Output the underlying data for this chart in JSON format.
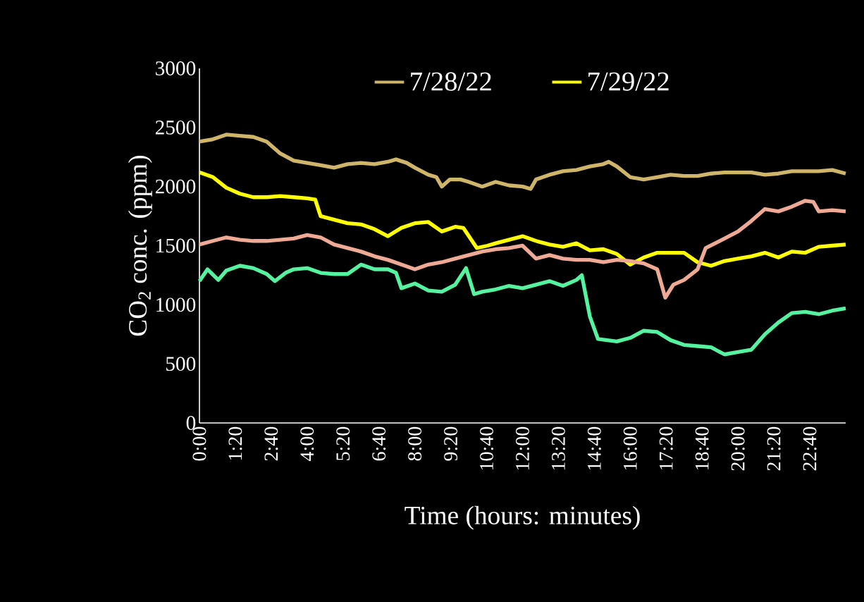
{
  "chart_data": {
    "type": "line",
    "xlabel": "Time (hours: minutes)",
    "ylabel": "CO$_{2}$ conc. (ppm)",
    "xlim": [
      0,
      24
    ],
    "ylim": [
      0,
      3000
    ],
    "xticks": [
      {
        "value": 0,
        "label": "0:00"
      },
      {
        "value": 1.3333,
        "label": "1:20"
      },
      {
        "value": 2.6667,
        "label": "2:40"
      },
      {
        "value": 4,
        "label": "4:00"
      },
      {
        "value": 5.3333,
        "label": "5:20"
      },
      {
        "value": 6.6667,
        "label": "6:40"
      },
      {
        "value": 8,
        "label": "8:00"
      },
      {
        "value": 9.3333,
        "label": "9:20"
      },
      {
        "value": 10.6667,
        "label": "10:40"
      },
      {
        "value": 12,
        "label": "12:00"
      },
      {
        "value": 13.3333,
        "label": "13:20"
      },
      {
        "value": 14.6667,
        "label": "14:40"
      },
      {
        "value": 16,
        "label": "16:00"
      },
      {
        "value": 17.3333,
        "label": "17:20"
      },
      {
        "value": 18.6667,
        "label": "18:40"
      },
      {
        "value": 20,
        "label": "20:00"
      },
      {
        "value": 21.3333,
        "label": "21:20"
      },
      {
        "value": 22.6667,
        "label": "22:40"
      }
    ],
    "yticks": [
      0,
      500,
      1000,
      1500,
      2000,
      2500,
      3000
    ],
    "grid": false,
    "legend": "top",
    "marker": "none",
    "line_style": "solid",
    "series": [
      {
        "name": "7/28/22",
        "color": "#cfb56a",
        "x": [
          0,
          0.5,
          1,
          1.5,
          2,
          2.5,
          3,
          3.5,
          4,
          4.5,
          5,
          5.5,
          6,
          6.5,
          7,
          7.3,
          7.7,
          8,
          8.5,
          8.8,
          9,
          9.3,
          9.7,
          10,
          10.5,
          11,
          11.5,
          12,
          12.3,
          12.5,
          13,
          13.5,
          14,
          14.5,
          15,
          15.2,
          15.5,
          16,
          16.5,
          17,
          17.5,
          18,
          18.5,
          19,
          19.5,
          20,
          20.5,
          21,
          21.5,
          22,
          22.5,
          23,
          23.5,
          24
        ],
        "values": [
          2380,
          2400,
          2440,
          2430,
          2420,
          2380,
          2280,
          2220,
          2200,
          2180,
          2160,
          2190,
          2200,
          2190,
          2210,
          2230,
          2200,
          2160,
          2100,
          2080,
          2000,
          2060,
          2060,
          2040,
          2000,
          2040,
          2010,
          2000,
          1980,
          2060,
          2100,
          2130,
          2140,
          2170,
          2190,
          2210,
          2170,
          2080,
          2060,
          2080,
          2100,
          2090,
          2090,
          2110,
          2120,
          2120,
          2120,
          2100,
          2110,
          2130,
          2130,
          2130,
          2140,
          2110
        ]
      },
      {
        "name": "7/29/22",
        "color": "#ffff00",
        "x": [
          0,
          0.5,
          1,
          1.5,
          2,
          2.5,
          3,
          3.5,
          4,
          4.3,
          4.5,
          5,
          5.5,
          6,
          6.5,
          7,
          7.5,
          8,
          8.5,
          9,
          9.5,
          9.8,
          10.3,
          10.7,
          11,
          11.5,
          12,
          12.5,
          13,
          13.5,
          14,
          14.5,
          15,
          15.5,
          16,
          16.5,
          17,
          17.5,
          18,
          18.5,
          19,
          19.5,
          20,
          20.5,
          21,
          21.5,
          22,
          22.5,
          23,
          23.5,
          24
        ],
        "values": [
          2120,
          2080,
          1990,
          1940,
          1910,
          1910,
          1920,
          1910,
          1900,
          1890,
          1750,
          1720,
          1690,
          1680,
          1640,
          1580,
          1650,
          1690,
          1700,
          1620,
          1660,
          1650,
          1480,
          1500,
          1520,
          1550,
          1580,
          1540,
          1510,
          1490,
          1520,
          1460,
          1470,
          1430,
          1340,
          1400,
          1440,
          1440,
          1440,
          1360,
          1330,
          1370,
          1390,
          1410,
          1440,
          1400,
          1450,
          1440,
          1490,
          1500,
          1510
        ]
      },
      {
        "color": "#eeaa94",
        "x": [
          0,
          0.5,
          1,
          1.5,
          2,
          2.5,
          3,
          3.5,
          4,
          4.5,
          5,
          5.5,
          6,
          6.5,
          7,
          7.5,
          8,
          8.5,
          9,
          9.5,
          10,
          10.5,
          11,
          11.5,
          12,
          12.5,
          13,
          13.5,
          14,
          14.5,
          15,
          15.5,
          16,
          16.5,
          17,
          17.3,
          17.6,
          18,
          18.5,
          18.8,
          19.5,
          20,
          20.5,
          21,
          21.5,
          22,
          22.5,
          22.8,
          23,
          23.5,
          24
        ],
        "values": [
          1510,
          1540,
          1570,
          1550,
          1540,
          1540,
          1550,
          1560,
          1590,
          1570,
          1510,
          1480,
          1450,
          1410,
          1380,
          1340,
          1300,
          1340,
          1360,
          1390,
          1420,
          1450,
          1470,
          1480,
          1500,
          1390,
          1420,
          1390,
          1380,
          1380,
          1360,
          1380,
          1370,
          1350,
          1300,
          1060,
          1170,
          1210,
          1300,
          1480,
          1560,
          1620,
          1710,
          1810,
          1790,
          1830,
          1880,
          1870,
          1790,
          1800,
          1790
        ]
      },
      {
        "color": "#55f2a0",
        "x": [
          0,
          0.3,
          0.7,
          1,
          1.5,
          2,
          2.5,
          2.8,
          3.2,
          3.5,
          4,
          4.5,
          5,
          5.5,
          6,
          6.5,
          7,
          7.3,
          7.5,
          8,
          8.5,
          9,
          9.5,
          9.9,
          10.2,
          10.5,
          11,
          11.5,
          12,
          12.5,
          13,
          13.5,
          14,
          14.2,
          14.5,
          14.8,
          15.5,
          16,
          16.5,
          17,
          17.5,
          18,
          18.5,
          19,
          19.5,
          20,
          20.5,
          21,
          21.5,
          22,
          22.5,
          23,
          23.5,
          24
        ],
        "values": [
          1200,
          1300,
          1210,
          1290,
          1330,
          1310,
          1260,
          1200,
          1270,
          1300,
          1310,
          1270,
          1260,
          1260,
          1340,
          1300,
          1300,
          1270,
          1140,
          1180,
          1120,
          1110,
          1170,
          1310,
          1090,
          1110,
          1130,
          1160,
          1140,
          1170,
          1200,
          1160,
          1210,
          1250,
          900,
          710,
          690,
          720,
          780,
          770,
          700,
          660,
          650,
          640,
          580,
          600,
          620,
          750,
          850,
          930,
          940,
          920,
          950,
          970
        ]
      }
    ]
  }
}
